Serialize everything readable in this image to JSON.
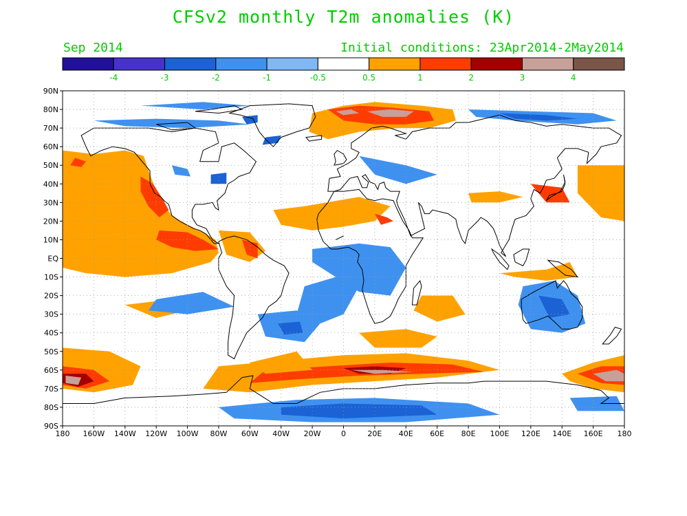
{
  "title": "CFSv2 monthly T2m anomalies (K)",
  "month_label": "Sep 2014",
  "init_label": "Initial conditions: 23Apr2014-2May2014",
  "colorbar": {
    "colors": [
      "#21119a",
      "#4633cc",
      "#1b62d4",
      "#3f91f0",
      "#7fb8f4",
      "#ffffff",
      "#ffa200",
      "#ff3c00",
      "#a50000",
      "#c8a09a",
      "#7a5548"
    ],
    "labels": [
      "-4",
      "-3",
      "-2",
      "-1",
      "-0.5",
      "0.5",
      "1",
      "2",
      "3",
      "4"
    ]
  },
  "axes": {
    "lat_labels": [
      "90N",
      "80N",
      "70N",
      "60N",
      "50N",
      "40N",
      "30N",
      "20N",
      "10N",
      "EQ",
      "10S",
      "20S",
      "30S",
      "40S",
      "50S",
      "60S",
      "70S",
      "80S",
      "90S"
    ],
    "lon_labels": [
      "180",
      "160W",
      "140W",
      "120W",
      "100W",
      "80W",
      "60W",
      "40W",
      "20W",
      "0",
      "20E",
      "40E",
      "60E",
      "80E",
      "100E",
      "120E",
      "140E",
      "160E",
      "180"
    ]
  },
  "anomaly_regions": [
    {
      "name": "NE Pacific warm",
      "level": 1,
      "lon": [
        -178,
        -120
      ],
      "lat": [
        10,
        60
      ]
    },
    {
      "name": "California coast warm",
      "level": 2,
      "lon": [
        -130,
        -115
      ],
      "lat": [
        20,
        40
      ]
    },
    {
      "name": "Tropical E Pacific warm",
      "level": 1,
      "lon": [
        -180,
        -80
      ],
      "lat": [
        -10,
        18
      ]
    },
    {
      "name": "N Atlantic/Arctic warm",
      "level": 2,
      "lon": [
        -20,
        60
      ],
      "lat": [
        62,
        82
      ]
    },
    {
      "name": "Barents hot spot",
      "level": 4,
      "lon": [
        10,
        50
      ],
      "lat": [
        75,
        80
      ]
    },
    {
      "name": "Southern Ocean warm belt",
      "level": 2,
      "lon": [
        -80,
        100
      ],
      "lat": [
        -75,
        -55
      ]
    },
    {
      "name": "SE Pacific hot spot",
      "level": 4,
      "lon": [
        -178,
        -155
      ],
      "lat": [
        -70,
        -60
      ]
    },
    {
      "name": "Antarctic cool",
      "level": -1,
      "lon": [
        -70,
        80
      ],
      "lat": [
        -88,
        -75
      ]
    },
    {
      "name": "Australia cool",
      "level": -1,
      "lon": [
        115,
        155
      ],
      "lat": [
        -45,
        -10
      ]
    },
    {
      "name": "South Atlantic cool",
      "level": -1,
      "lon": [
        -50,
        -10
      ],
      "lat": [
        -45,
        -20
      ]
    },
    {
      "name": "Siberian Arctic cool",
      "level": -2,
      "lon": [
        80,
        170
      ],
      "lat": [
        70,
        80
      ]
    }
  ]
}
